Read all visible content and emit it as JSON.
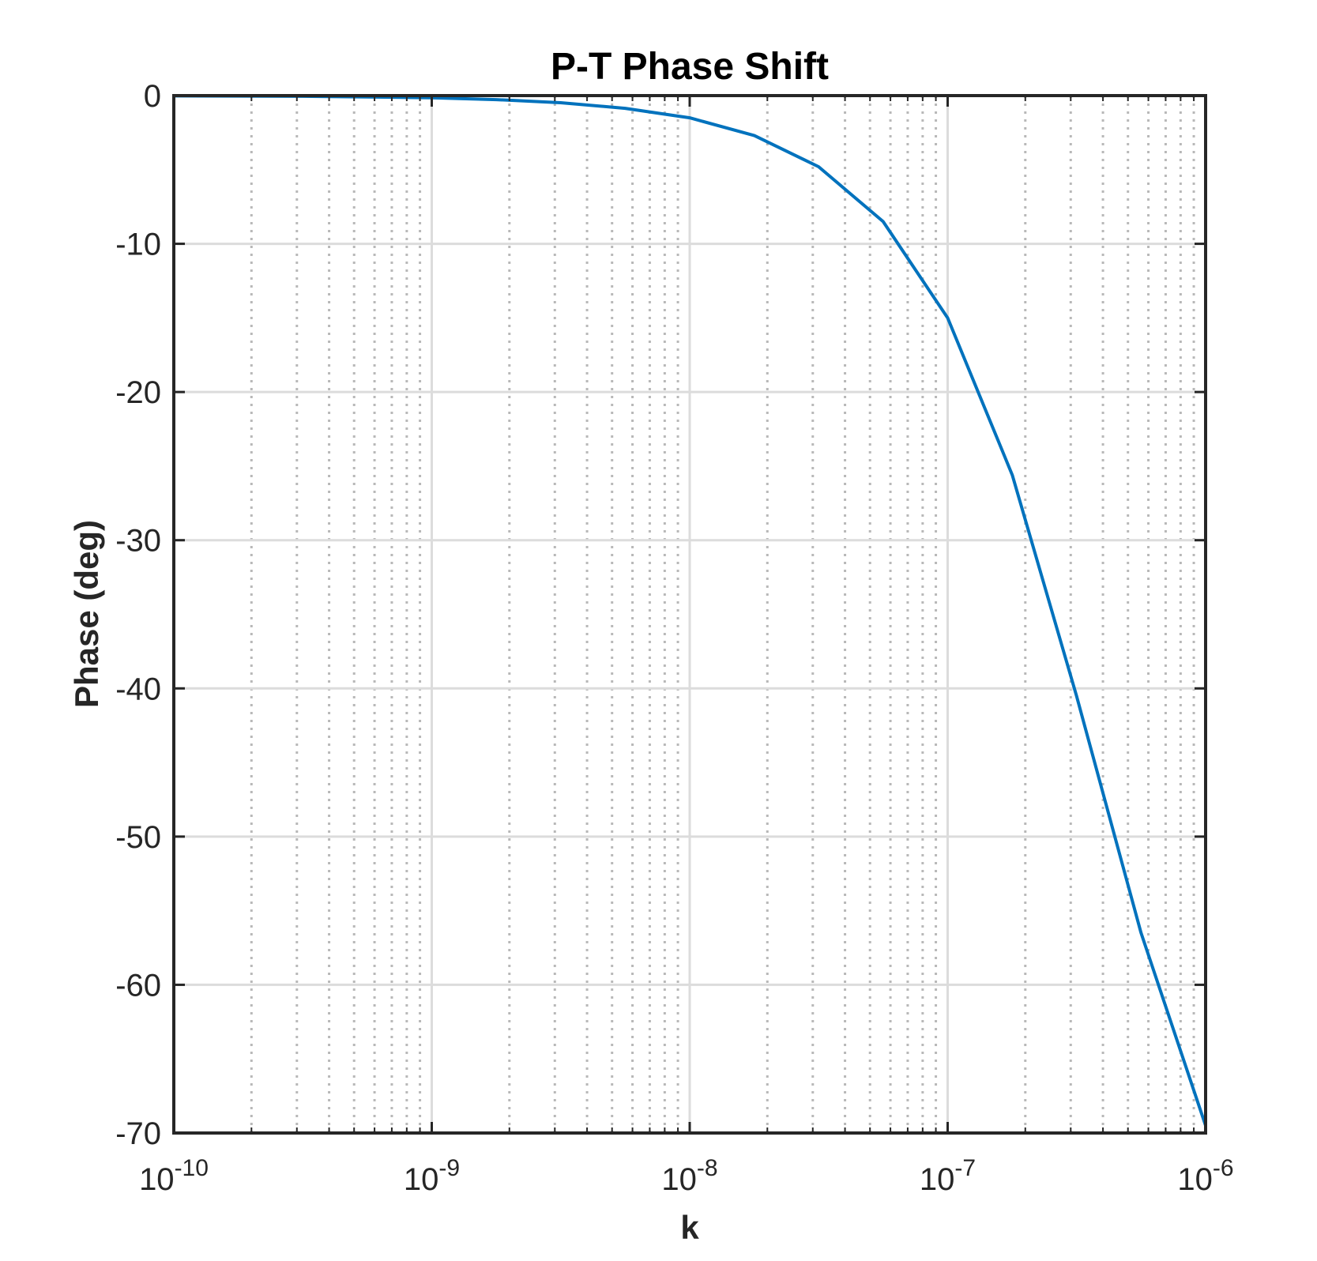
{
  "chart_data": {
    "type": "line",
    "title": "P-T Phase Shift",
    "xlabel": "k",
    "ylabel": "Phase (deg)",
    "xscale": "log",
    "xlim": [
      1e-10,
      1e-06
    ],
    "ylim": [
      -70,
      0
    ],
    "grid": true,
    "minor_grid": true,
    "x_ticks": [
      {
        "value": 1e-10,
        "base": "10",
        "exp": "-10"
      },
      {
        "value": 1e-09,
        "base": "10",
        "exp": "-9"
      },
      {
        "value": 1e-08,
        "base": "10",
        "exp": "-8"
      },
      {
        "value": 1e-07,
        "base": "10",
        "exp": "-7"
      },
      {
        "value": 1e-06,
        "base": "10",
        "exp": "-6"
      }
    ],
    "y_ticks": [
      {
        "value": 0,
        "label": "0"
      },
      {
        "value": -10,
        "label": "-10"
      },
      {
        "value": -20,
        "label": "-20"
      },
      {
        "value": -30,
        "label": "-30"
      },
      {
        "value": -40,
        "label": "-40"
      },
      {
        "value": -50,
        "label": "-50"
      },
      {
        "value": -60,
        "label": "-60"
      },
      {
        "value": -70,
        "label": "-70"
      }
    ],
    "series": [
      {
        "color": "#0072bd",
        "x": [
          1e-10,
          1.78e-10,
          3.16e-10,
          5.62e-10,
          1e-09,
          1.78e-09,
          3.16e-09,
          5.62e-09,
          1e-08,
          1.78e-08,
          3.16e-08,
          5.62e-08,
          1e-07,
          1.78e-07,
          3.16e-07,
          5.62e-07,
          1e-06
        ],
        "y": [
          -0.02,
          -0.03,
          -0.05,
          -0.09,
          -0.15,
          -0.27,
          -0.48,
          -0.86,
          -1.5,
          -2.7,
          -4.8,
          -8.5,
          -15,
          -25.6,
          -40.5,
          -56.5,
          -69.5
        ]
      }
    ]
  }
}
